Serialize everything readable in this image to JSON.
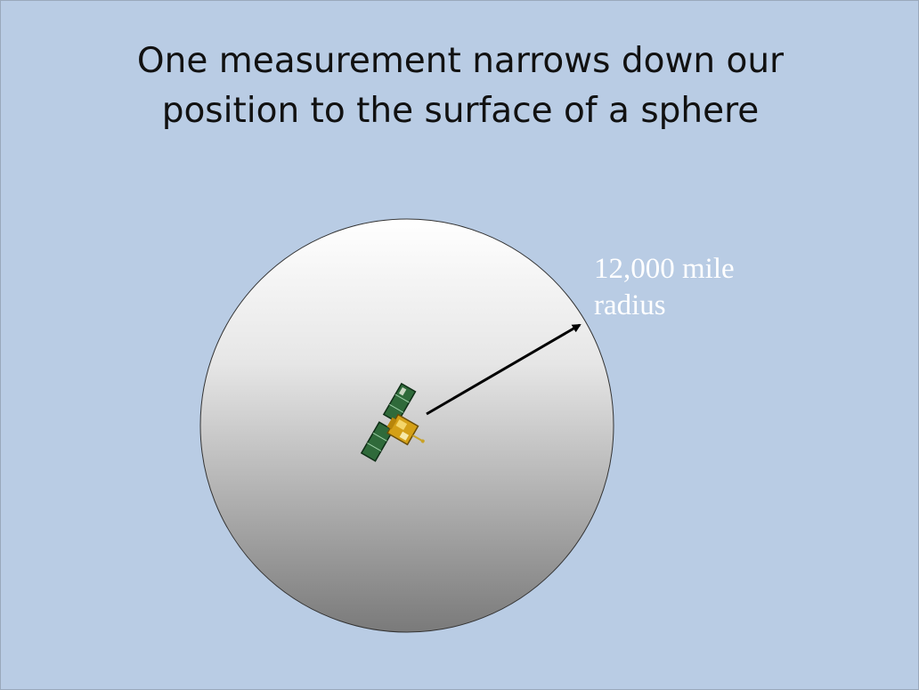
{
  "slide": {
    "title_lines": [
      "One measurement narrows down our",
      "position to the surface of a sphere"
    ],
    "radius_label_lines": [
      "12,000 mile",
      "radius"
    ],
    "satellite_icon": "satellite-icon",
    "colors": {
      "background": "#b9cce4",
      "sphere_top": "#ffffff",
      "sphere_bottom": "#7f7f7f",
      "arrow": "#000000",
      "label": "#ffffff"
    }
  }
}
